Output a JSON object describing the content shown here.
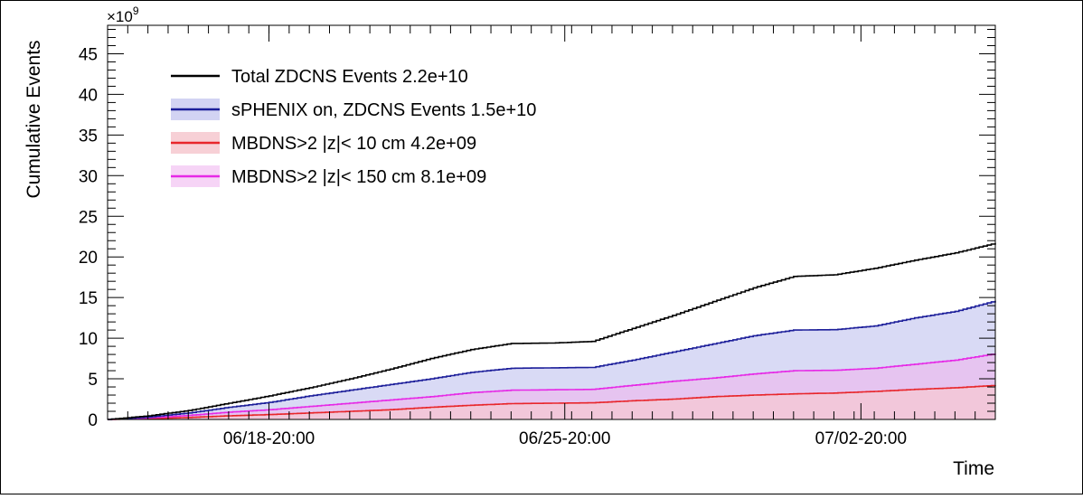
{
  "chart_data": {
    "type": "area",
    "xlabel": "Time",
    "ylabel": "Cumulative Events",
    "y_multiplier": "×10",
    "y_multiplier_exp": "9",
    "ylim": [
      0,
      48.5
    ],
    "xlim": [
      0,
      22
    ],
    "y_ticks": [
      0,
      5,
      10,
      15,
      20,
      25,
      30,
      35,
      40,
      45
    ],
    "x_ticks": [
      {
        "x": 4,
        "label": "06/18-20:00"
      },
      {
        "x": 11.33,
        "label": "06/25-20:00"
      },
      {
        "x": 18.67,
        "label": "07/02-20:00"
      }
    ],
    "legend_position": "top-left",
    "series": [
      {
        "name": "MBDNS>2 |z|< 10 cm 4.2e+09",
        "line_color": "#e8262b",
        "fill_color": "#f3c8d6",
        "fill": true,
        "points": [
          [
            0,
            0
          ],
          [
            1,
            0.1
          ],
          [
            2,
            0.25
          ],
          [
            3,
            0.45
          ],
          [
            4,
            0.6
          ],
          [
            5,
            0.8
          ],
          [
            6,
            1.0
          ],
          [
            7,
            1.2
          ],
          [
            8,
            1.5
          ],
          [
            9,
            1.75
          ],
          [
            10,
            1.95
          ],
          [
            11,
            2.0
          ],
          [
            12,
            2.05
          ],
          [
            13,
            2.3
          ],
          [
            14,
            2.5
          ],
          [
            15,
            2.8
          ],
          [
            16,
            3.0
          ],
          [
            17,
            3.15
          ],
          [
            18,
            3.25
          ],
          [
            19,
            3.45
          ],
          [
            20,
            3.7
          ],
          [
            21,
            3.9
          ],
          [
            22,
            4.2
          ]
        ]
      },
      {
        "name": "MBDNS>2 |z|< 150 cm 8.1e+09",
        "line_color": "#e629e6",
        "fill_color": "#e7c0ef",
        "fill": true,
        "points": [
          [
            0,
            0
          ],
          [
            1,
            0.2
          ],
          [
            2,
            0.5
          ],
          [
            3,
            0.9
          ],
          [
            4,
            1.2
          ],
          [
            5,
            1.6
          ],
          [
            6,
            2.0
          ],
          [
            7,
            2.4
          ],
          [
            8,
            2.8
          ],
          [
            9,
            3.3
          ],
          [
            10,
            3.6
          ],
          [
            11,
            3.65
          ],
          [
            12,
            3.7
          ],
          [
            13,
            4.2
          ],
          [
            14,
            4.7
          ],
          [
            15,
            5.1
          ],
          [
            16,
            5.6
          ],
          [
            17,
            6.0
          ],
          [
            18,
            6.05
          ],
          [
            19,
            6.3
          ],
          [
            20,
            6.8
          ],
          [
            21,
            7.3
          ],
          [
            22,
            8.1
          ]
        ]
      },
      {
        "name": "sPHENIX on, ZDCNS Events 1.5e+10",
        "line_color": "#1c1e9a",
        "fill_color": "#d2d3f3",
        "fill": true,
        "points": [
          [
            0,
            0
          ],
          [
            1,
            0.3
          ],
          [
            2,
            0.8
          ],
          [
            3,
            1.5
          ],
          [
            4,
            2.1
          ],
          [
            5,
            2.9
          ],
          [
            6,
            3.6
          ],
          [
            7,
            4.3
          ],
          [
            8,
            5.0
          ],
          [
            9,
            5.8
          ],
          [
            10,
            6.3
          ],
          [
            11,
            6.35
          ],
          [
            12,
            6.4
          ],
          [
            13,
            7.3
          ],
          [
            14,
            8.3
          ],
          [
            15,
            9.3
          ],
          [
            16,
            10.3
          ],
          [
            17,
            11.0
          ],
          [
            18,
            11.05
          ],
          [
            19,
            11.5
          ],
          [
            20,
            12.5
          ],
          [
            21,
            13.3
          ],
          [
            22,
            14.6
          ]
        ]
      },
      {
        "name": "Total ZDCNS Events 2.2e+10",
        "line_color": "#000000",
        "fill_color": "#ffffff",
        "fill": false,
        "points": [
          [
            0,
            0
          ],
          [
            1,
            0.45
          ],
          [
            2,
            1.1
          ],
          [
            3,
            2.0
          ],
          [
            4,
            2.9
          ],
          [
            5,
            3.9
          ],
          [
            6,
            5.0
          ],
          [
            7,
            6.2
          ],
          [
            8,
            7.5
          ],
          [
            9,
            8.6
          ],
          [
            10,
            9.35
          ],
          [
            11,
            9.4
          ],
          [
            12,
            9.6
          ],
          [
            13,
            11.2
          ],
          [
            14,
            12.8
          ],
          [
            15,
            14.5
          ],
          [
            16,
            16.2
          ],
          [
            17,
            17.6
          ],
          [
            18,
            17.8
          ],
          [
            19,
            18.6
          ],
          [
            20,
            19.6
          ],
          [
            21,
            20.5
          ],
          [
            22,
            21.7
          ]
        ]
      }
    ],
    "legend": [
      {
        "label": "Total ZDCNS Events 2.2e+10",
        "line_color": "#000000",
        "fill_color": "#ffffff"
      },
      {
        "label": "sPHENIX on, ZDCNS Events 1.5e+10",
        "line_color": "#1c1e9a",
        "fill_color": "#d2d3f3"
      },
      {
        "label": "MBDNS>2 |z|< 10 cm 4.2e+09",
        "line_color": "#e8262b",
        "fill_color": "#f7d0d6"
      },
      {
        "label": "MBDNS>2 |z|< 150 cm 8.1e+09",
        "line_color": "#e629e6",
        "fill_color": "#f6d4f6"
      }
    ]
  }
}
